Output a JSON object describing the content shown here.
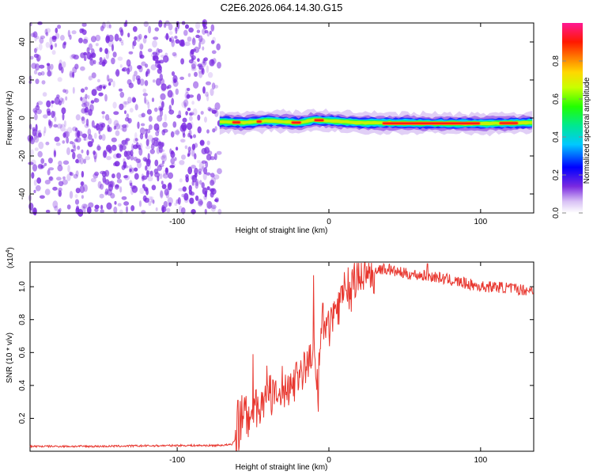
{
  "title": "C2E6.2026.064.14.30.G15",
  "colors": {
    "snr_line": "#e8372f",
    "spec_dots": "#7a2ae0"
  },
  "chart_data": [
    {
      "type": "heatmap",
      "name": "spectrogram",
      "xlabel": "Height of straight line (km)",
      "ylabel": "Frequency (Hz)",
      "xlim": [
        -197,
        135
      ],
      "ylim": [
        -50,
        50
      ],
      "x_ticks": [
        -100,
        0,
        100
      ],
      "x_tick_labels": [
        "-100",
        "0",
        "100"
      ],
      "y_ticks": [
        -40,
        -20,
        0,
        20,
        40
      ],
      "y_tick_labels": [
        "-40",
        "-20",
        "0",
        "20",
        "40"
      ],
      "noise_region_x": [
        -197,
        -72
      ],
      "signal_band": {
        "x_start": -72,
        "x_end": 135,
        "freq_center": [
          [
            -72,
            -2.0
          ],
          [
            -55,
            -2.5
          ],
          [
            -40,
            -1.5
          ],
          [
            -20,
            -2.5
          ],
          [
            -10,
            -1.0
          ],
          [
            0,
            -1.5
          ],
          [
            20,
            -2.5
          ],
          [
            60,
            -2.8
          ],
          [
            100,
            -3.0
          ],
          [
            135,
            -2.5
          ]
        ],
        "peak_segments": [
          [
            -64,
            -58
          ],
          [
            -48,
            -44
          ],
          [
            -25,
            -18
          ],
          [
            -10,
            -3
          ],
          [
            35,
            100
          ],
          [
            112,
            125
          ]
        ]
      },
      "colorbar": {
        "label": "Normalized spectral amplitude",
        "min": 0,
        "max": 1,
        "ticks": [
          0,
          0.2,
          0.4,
          0.6,
          0.8
        ],
        "tick_labels": [
          "0.0",
          "0.2",
          "0.4",
          "0.6",
          "0.8"
        ]
      }
    },
    {
      "type": "line",
      "name": "snr",
      "xlabel": "Height of straight line (km)",
      "ylabel": "SNR (10 * v/v)",
      "y_scale_label": "(x10",
      "y_scale_exp": "4",
      "xlim": [
        -197,
        135
      ],
      "ylim": [
        0,
        1.15
      ],
      "x_ticks": [
        -100,
        0,
        100
      ],
      "x_tick_labels": [
        "-100",
        "0",
        "100"
      ],
      "y_ticks": [
        0.2,
        0.4,
        0.6,
        0.8,
        1.0
      ],
      "y_tick_labels": [
        "0.2",
        "0.4",
        "0.6",
        "0.8",
        "1.0"
      ],
      "series": [
        {
          "name": "SNR",
          "x": [
            -197,
            -150,
            -100,
            -75,
            -64,
            -60,
            -58,
            -55,
            -50,
            -45,
            -42,
            -40,
            -35,
            -30,
            -25,
            -20,
            -15,
            -12,
            -10,
            -8,
            -6,
            -5,
            -3,
            0,
            5,
            10,
            15,
            20,
            25,
            30,
            35,
            40,
            45,
            50,
            60,
            70,
            80,
            90,
            100,
            110,
            120,
            130,
            135
          ],
          "y": [
            0.03,
            0.03,
            0.035,
            0.035,
            0.04,
            0.1,
            0.18,
            0.24,
            0.25,
            0.3,
            0.32,
            0.34,
            0.32,
            0.38,
            0.42,
            0.46,
            0.52,
            0.55,
            0.65,
            0.35,
            0.55,
            0.7,
            0.72,
            0.78,
            0.88,
            0.95,
            1.0,
            1.05,
            1.08,
            1.1,
            1.11,
            1.1,
            1.09,
            1.08,
            1.07,
            1.06,
            1.04,
            1.02,
            1.0,
            1.0,
            0.99,
            0.98,
            0.98
          ]
        }
      ],
      "spikes": [
        [
          -60,
          0.31
        ],
        [
          -50,
          0.59
        ],
        [
          -41,
          0.52
        ],
        [
          -10,
          1.07
        ],
        [
          -7,
          0.24
        ],
        [
          -4,
          0.9
        ],
        [
          40,
          1.14
        ],
        [
          65,
          1.14
        ]
      ]
    }
  ]
}
